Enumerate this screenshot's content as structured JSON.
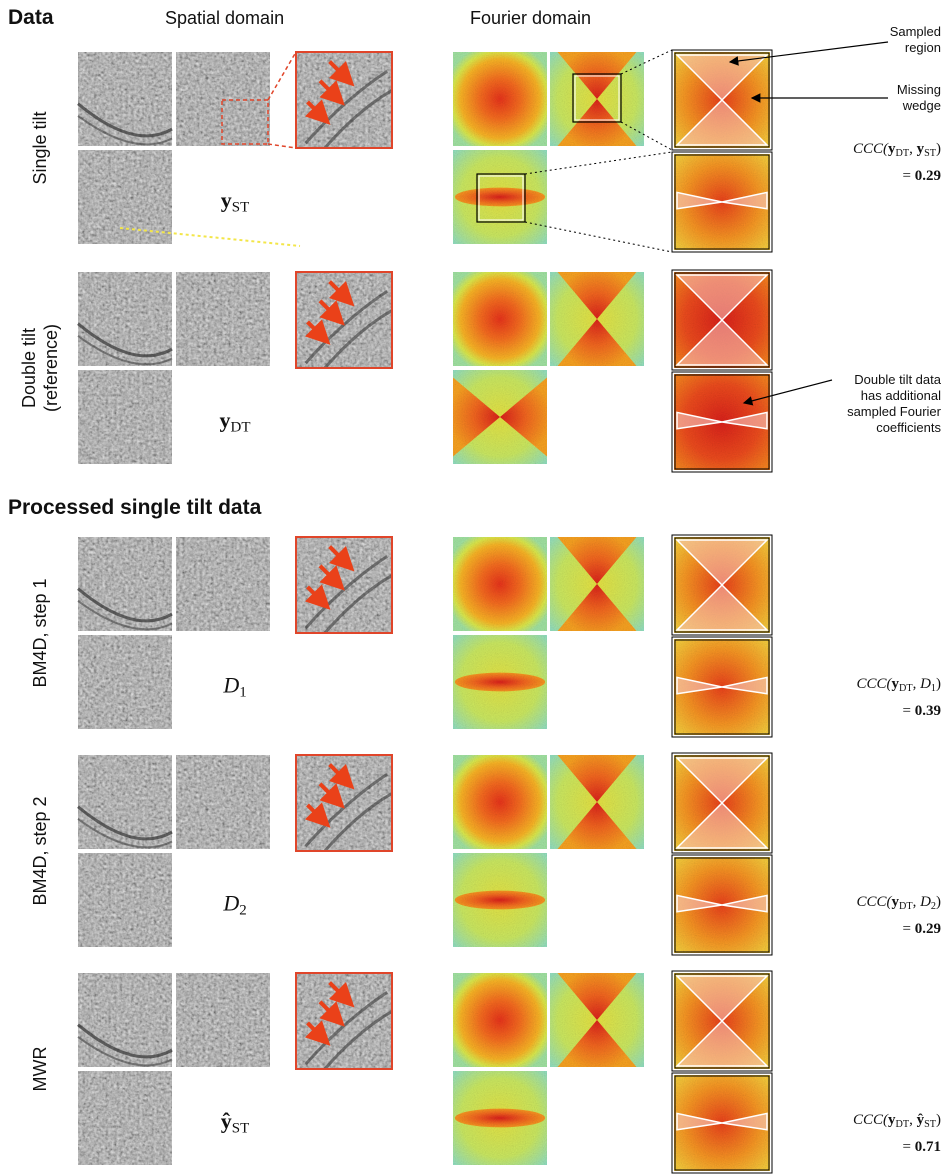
{
  "header": {
    "data": "Data",
    "spatial": "Spatial domain",
    "fourier": "Fourier domain",
    "processed": "Processed single tilt data"
  },
  "annotations": {
    "sampled_region": [
      "Sampled",
      "region"
    ],
    "missing_wedge": [
      "Missing",
      "wedge"
    ],
    "double_tilt_note": [
      "Double tilt data",
      "has additional",
      "sampled Fourier",
      "coefficients"
    ]
  },
  "rows": [
    {
      "label": [
        "Single tilt"
      ],
      "symbol": [
        {
          "text": "y",
          "style": "bold"
        },
        {
          "text": "ST",
          "style": "sub"
        }
      ],
      "ccc": {
        "expr": [
          {
            "text": "CCC(",
            "style": "italic"
          },
          {
            "text": "y",
            "style": "bold"
          },
          {
            "text": "DT",
            "style": "sub"
          },
          {
            "text": ", ",
            "style": "roman"
          },
          {
            "text": "y",
            "style": "bold"
          },
          {
            "text": "ST",
            "style": "sub"
          },
          {
            "text": ")",
            "style": "roman"
          }
        ],
        "result": [
          {
            "text": "= ",
            "style": "roman"
          },
          {
            "text": "0.29",
            "style": "bold"
          }
        ]
      }
    },
    {
      "label": [
        "Double tilt",
        "(reference)"
      ],
      "symbol": [
        {
          "text": "y",
          "style": "bold"
        },
        {
          "text": "DT",
          "style": "sub"
        }
      ]
    },
    {
      "label": [
        "BM4D, step 1"
      ],
      "symbol": [
        {
          "text": "D",
          "style": "italic"
        },
        {
          "text": "1",
          "style": "sub"
        }
      ],
      "ccc": {
        "expr": [
          {
            "text": "CCC(",
            "style": "italic"
          },
          {
            "text": "y",
            "style": "bold"
          },
          {
            "text": "DT",
            "style": "sub"
          },
          {
            "text": ", ",
            "style": "roman"
          },
          {
            "text": "D",
            "style": "italic"
          },
          {
            "text": "1",
            "style": "sub"
          },
          {
            "text": ")",
            "style": "roman"
          }
        ],
        "result": [
          {
            "text": "= ",
            "style": "roman"
          },
          {
            "text": "0.39",
            "style": "bold"
          }
        ]
      }
    },
    {
      "label": [
        "BM4D, step 2"
      ],
      "symbol": [
        {
          "text": "D",
          "style": "italic"
        },
        {
          "text": "2",
          "style": "sub"
        }
      ],
      "ccc": {
        "expr": [
          {
            "text": "CCC(",
            "style": "italic"
          },
          {
            "text": "y",
            "style": "bold"
          },
          {
            "text": "DT",
            "style": "sub"
          },
          {
            "text": ", ",
            "style": "roman"
          },
          {
            "text": "D",
            "style": "italic"
          },
          {
            "text": "2",
            "style": "sub"
          },
          {
            "text": ")",
            "style": "roman"
          }
        ],
        "result": [
          {
            "text": "= ",
            "style": "roman"
          },
          {
            "text": "0.29",
            "style": "bold"
          }
        ]
      }
    },
    {
      "label": [
        "MWR"
      ],
      "symbol": [
        {
          "text": "ŷ",
          "style": "bold"
        },
        {
          "text": "ST",
          "style": "sub"
        }
      ],
      "ccc": {
        "expr": [
          {
            "text": "CCC(",
            "style": "italic"
          },
          {
            "text": "y",
            "style": "bold"
          },
          {
            "text": "DT",
            "style": "sub"
          },
          {
            "text": ", ",
            "style": "roman"
          },
          {
            "text": "ŷ",
            "style": "bold"
          },
          {
            "text": "ST",
            "style": "sub"
          },
          {
            "text": ")",
            "style": "roman"
          }
        ],
        "result": [
          {
            "text": "= ",
            "style": "roman"
          },
          {
            "text": "0.71",
            "style": "bold"
          }
        ]
      }
    }
  ]
}
